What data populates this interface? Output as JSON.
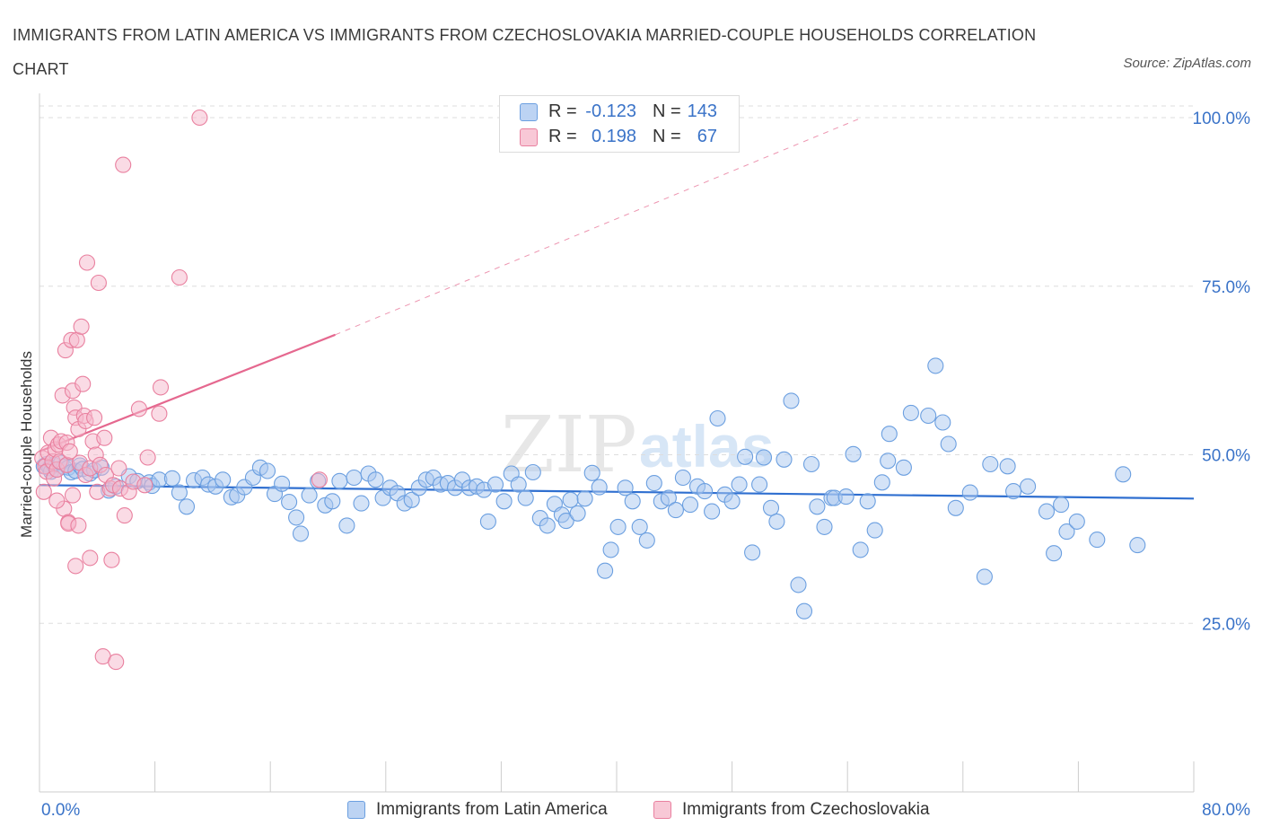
{
  "title": "IMMIGRANTS FROM LATIN AMERICA VS IMMIGRANTS FROM CZECHOSLOVAKIA MARRIED-COUPLE HOUSEHOLDS CORRELATION CHART",
  "source": "Source: ZipAtlas.com",
  "watermark": {
    "zip": "ZIP",
    "atlas": "atlas"
  },
  "stats": [
    {
      "r_label": "R =",
      "r_value": "-0.123",
      "n_label": "N =",
      "n_value": "143"
    },
    {
      "r_label": "R =",
      "r_value": "0.198",
      "n_label": "N =",
      "n_value": "67"
    }
  ],
  "legend": [
    {
      "label": "Immigrants from Latin America"
    },
    {
      "label": "Immigrants from Czechoslovakia"
    }
  ],
  "colors": {
    "blue_fill": "#a9c8f0",
    "blue_stroke": "#6b9fe0",
    "blue_line": "#2f6fd0",
    "pink_fill": "#f5b8cb",
    "pink_stroke": "#e9809f",
    "pink_line": "#e5688f",
    "axis_text": "#3a73c8",
    "grid": "#dddddd"
  },
  "chart_data": {
    "type": "scatter",
    "title": "IMMIGRANTS FROM LATIN AMERICA VS IMMIGRANTS FROM CZECHOSLOVAKIA MARRIED-COUPLE HOUSEHOLDS CORRELATION CHART",
    "xlabel": "",
    "ylabel": "Married-couple Households",
    "xlim": [
      0,
      80
    ],
    "ylim": [
      0,
      102
    ],
    "x_tick_labels": [
      {
        "value": 0,
        "label": "0.0%"
      },
      {
        "value": 80,
        "label": "80.0%"
      }
    ],
    "y_tick_labels": [
      {
        "value": 100,
        "label": "100.0%"
      },
      {
        "value": 75,
        "label": "75.0%"
      },
      {
        "value": 50,
        "label": "50.0%"
      },
      {
        "value": 25,
        "label": "25.0%"
      }
    ],
    "x_minor_ticks": [
      0,
      8,
      16,
      24,
      32,
      40,
      48,
      56,
      64,
      72,
      80
    ],
    "series": [
      {
        "name": "Immigrants from Latin America",
        "color": "blue",
        "trend": {
          "x": [
            0,
            80
          ],
          "y": [
            45.5,
            43.5
          ]
        },
        "points": [
          [
            0.3,
            48.3
          ],
          [
            0.5,
            48.6
          ],
          [
            0.7,
            48.0
          ],
          [
            0.8,
            47.5
          ],
          [
            1.0,
            48.5
          ],
          [
            1.2,
            47.8
          ],
          [
            1.5,
            48.8
          ],
          [
            1.7,
            48.2
          ],
          [
            2.0,
            48.1
          ],
          [
            2.2,
            47.4
          ],
          [
            2.5,
            47.6
          ],
          [
            2.8,
            48.4
          ],
          [
            3.0,
            47.9
          ],
          [
            3.5,
            47.2
          ],
          [
            3.8,
            47.7
          ],
          [
            4.3,
            48.1
          ],
          [
            4.8,
            44.7
          ],
          [
            5.3,
            45.3
          ],
          [
            6.2,
            46.8
          ],
          [
            6.8,
            46.1
          ],
          [
            7.6,
            45.9
          ],
          [
            7.8,
            45.4
          ],
          [
            8.3,
            46.3
          ],
          [
            9.2,
            46.5
          ],
          [
            9.7,
            44.4
          ],
          [
            10.2,
            42.3
          ],
          [
            10.7,
            46.2
          ],
          [
            11.3,
            46.6
          ],
          [
            11.7,
            45.6
          ],
          [
            12.2,
            45.3
          ],
          [
            12.7,
            46.3
          ],
          [
            13.3,
            43.7
          ],
          [
            13.7,
            44.0
          ],
          [
            14.2,
            45.2
          ],
          [
            14.8,
            46.6
          ],
          [
            15.3,
            48.1
          ],
          [
            15.8,
            47.6
          ],
          [
            16.3,
            44.2
          ],
          [
            16.8,
            45.7
          ],
          [
            17.3,
            43.0
          ],
          [
            17.8,
            40.7
          ],
          [
            18.1,
            38.3
          ],
          [
            18.7,
            44.0
          ],
          [
            19.3,
            46.1
          ],
          [
            19.8,
            42.5
          ],
          [
            20.3,
            43.1
          ],
          [
            20.8,
            46.1
          ],
          [
            21.3,
            39.5
          ],
          [
            21.8,
            46.6
          ],
          [
            22.3,
            42.8
          ],
          [
            22.8,
            47.2
          ],
          [
            23.3,
            46.3
          ],
          [
            23.8,
            43.6
          ],
          [
            24.3,
            45.1
          ],
          [
            24.8,
            44.3
          ],
          [
            25.3,
            42.8
          ],
          [
            25.8,
            43.3
          ],
          [
            26.3,
            45.1
          ],
          [
            26.8,
            46.3
          ],
          [
            27.3,
            46.6
          ],
          [
            27.8,
            45.6
          ],
          [
            28.3,
            45.8
          ],
          [
            28.8,
            45.1
          ],
          [
            29.3,
            46.3
          ],
          [
            29.8,
            45.1
          ],
          [
            30.3,
            45.3
          ],
          [
            30.8,
            44.8
          ],
          [
            31.1,
            40.1
          ],
          [
            31.6,
            45.6
          ],
          [
            32.2,
            43.1
          ],
          [
            32.7,
            47.2
          ],
          [
            33.2,
            45.6
          ],
          [
            33.7,
            43.6
          ],
          [
            34.2,
            47.4
          ],
          [
            34.7,
            40.6
          ],
          [
            35.2,
            39.5
          ],
          [
            35.7,
            42.7
          ],
          [
            36.2,
            41.1
          ],
          [
            36.5,
            40.2
          ],
          [
            36.8,
            43.3
          ],
          [
            37.3,
            41.3
          ],
          [
            37.8,
            43.5
          ],
          [
            38.3,
            47.3
          ],
          [
            38.8,
            45.2
          ],
          [
            39.2,
            32.8
          ],
          [
            39.6,
            35.9
          ],
          [
            40.1,
            39.3
          ],
          [
            40.6,
            45.1
          ],
          [
            41.1,
            43.1
          ],
          [
            41.6,
            39.3
          ],
          [
            42.1,
            37.3
          ],
          [
            42.6,
            45.8
          ],
          [
            43.1,
            43.1
          ],
          [
            43.6,
            43.6
          ],
          [
            44.1,
            41.8
          ],
          [
            44.6,
            46.6
          ],
          [
            45.1,
            42.6
          ],
          [
            45.6,
            45.3
          ],
          [
            46.1,
            44.6
          ],
          [
            46.6,
            41.6
          ],
          [
            47.0,
            55.4
          ],
          [
            47.5,
            44.1
          ],
          [
            48.0,
            43.1
          ],
          [
            48.5,
            45.6
          ],
          [
            48.9,
            49.7
          ],
          [
            49.4,
            35.5
          ],
          [
            49.9,
            45.6
          ],
          [
            50.2,
            49.6
          ],
          [
            50.7,
            42.1
          ],
          [
            51.1,
            40.1
          ],
          [
            51.6,
            49.3
          ],
          [
            52.1,
            58.0
          ],
          [
            52.6,
            30.7
          ],
          [
            53.0,
            26.8
          ],
          [
            53.5,
            48.6
          ],
          [
            53.9,
            42.3
          ],
          [
            54.4,
            39.3
          ],
          [
            54.9,
            43.6
          ],
          [
            55.1,
            43.6
          ],
          [
            55.9,
            43.8
          ],
          [
            56.4,
            50.1
          ],
          [
            56.9,
            35.9
          ],
          [
            57.4,
            43.1
          ],
          [
            57.9,
            38.8
          ],
          [
            58.4,
            45.9
          ],
          [
            58.9,
            53.1
          ],
          [
            58.8,
            49.1
          ],
          [
            59.9,
            48.1
          ],
          [
            60.4,
            56.2
          ],
          [
            61.6,
            55.8
          ],
          [
            62.1,
            63.2
          ],
          [
            62.6,
            54.8
          ],
          [
            63.0,
            51.6
          ],
          [
            63.5,
            42.1
          ],
          [
            64.5,
            44.4
          ],
          [
            65.5,
            31.9
          ],
          [
            65.9,
            48.6
          ],
          [
            67.1,
            48.3
          ],
          [
            67.5,
            44.6
          ],
          [
            68.5,
            45.3
          ],
          [
            69.8,
            41.6
          ],
          [
            70.3,
            35.4
          ],
          [
            70.8,
            42.6
          ],
          [
            71.2,
            38.6
          ],
          [
            71.9,
            40.1
          ],
          [
            73.3,
            37.4
          ],
          [
            75.1,
            47.1
          ],
          [
            76.1,
            36.6
          ]
        ]
      },
      {
        "name": "Immigrants from Czechoslovakia",
        "color": "pink",
        "trend": {
          "x": [
            0,
            20.5
          ],
          "y": [
            50.5,
            67.8
          ],
          "extension": {
            "x": [
              20.5,
              57
            ],
            "y": [
              67.8,
              100
            ]
          }
        },
        "points": [
          [
            0.2,
            49.5
          ],
          [
            0.4,
            48.3
          ],
          [
            0.5,
            47.5
          ],
          [
            0.6,
            50.3
          ],
          [
            0.8,
            52.5
          ],
          [
            0.9,
            49.0
          ],
          [
            1.0,
            46.5
          ],
          [
            1.1,
            50.8
          ],
          [
            1.2,
            47.8
          ],
          [
            1.3,
            51.5
          ],
          [
            1.4,
            49.0
          ],
          [
            1.5,
            52.0
          ],
          [
            1.6,
            58.8
          ],
          [
            1.7,
            42.0
          ],
          [
            1.8,
            65.5
          ],
          [
            1.9,
            48.5
          ],
          [
            1.9,
            51.8
          ],
          [
            2.0,
            40.0
          ],
          [
            2.1,
            50.5
          ],
          [
            2.2,
            67.0
          ],
          [
            2.3,
            59.5
          ],
          [
            2.3,
            44.0
          ],
          [
            2.4,
            57.0
          ],
          [
            2.5,
            55.5
          ],
          [
            2.6,
            67.0
          ],
          [
            2.7,
            53.8
          ],
          [
            2.8,
            48.8
          ],
          [
            2.9,
            69.0
          ],
          [
            3.0,
            60.5
          ],
          [
            3.1,
            55.8
          ],
          [
            3.2,
            47.0
          ],
          [
            3.2,
            55.0
          ],
          [
            3.3,
            78.5
          ],
          [
            3.5,
            48.0
          ],
          [
            3.5,
            34.7
          ],
          [
            3.7,
            52.0
          ],
          [
            3.8,
            55.5
          ],
          [
            3.9,
            50.0
          ],
          [
            4.0,
            44.5
          ],
          [
            4.1,
            75.5
          ],
          [
            4.2,
            48.5
          ],
          [
            4.4,
            20.1
          ],
          [
            4.5,
            52.5
          ],
          [
            4.6,
            47.0
          ],
          [
            4.9,
            45.0
          ],
          [
            5.0,
            34.4
          ],
          [
            5.1,
            45.5
          ],
          [
            5.3,
            19.3
          ],
          [
            5.5,
            48.0
          ],
          [
            5.6,
            45.0
          ],
          [
            5.8,
            93.0
          ],
          [
            5.9,
            41.0
          ],
          [
            6.2,
            44.5
          ],
          [
            6.5,
            46.0
          ],
          [
            6.9,
            56.8
          ],
          [
            7.3,
            45.5
          ],
          [
            7.5,
            49.6
          ],
          [
            8.3,
            56.1
          ],
          [
            8.4,
            60.0
          ],
          [
            9.7,
            76.3
          ],
          [
            11.1,
            100.0
          ],
          [
            19.4,
            46.3
          ],
          [
            1.2,
            43.2
          ],
          [
            2.0,
            39.8
          ],
          [
            2.5,
            33.5
          ],
          [
            2.7,
            39.5
          ],
          [
            0.3,
            44.5
          ]
        ]
      }
    ]
  }
}
